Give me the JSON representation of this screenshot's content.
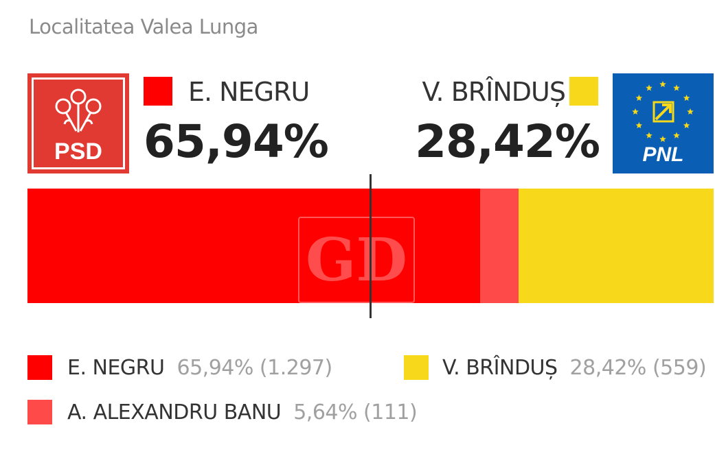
{
  "subtitle": "Localitatea Valea Lunga",
  "logos": {
    "left": {
      "party": "PSD",
      "color": "#e03a32"
    },
    "right": {
      "party": "PNL",
      "color": "#0a5fb4"
    }
  },
  "headers": {
    "left": {
      "name": "E. NEGRU",
      "percent": "65,94%",
      "color": "#ff0000"
    },
    "right": {
      "name": "V. BRÎNDUȘ",
      "percent": "28,42%",
      "color": "#f7d81b"
    }
  },
  "watermark": "GD",
  "chart_data": {
    "type": "bar",
    "orientation": "horizontal-stacked",
    "unit": "%",
    "series": [
      {
        "name": "E. NEGRU",
        "value": 65.94,
        "votes": 1297,
        "color": "#ff0000"
      },
      {
        "name": "A. ALEXANDRU BANU",
        "value": 5.64,
        "votes": 111,
        "color": "#ff4a4a"
      },
      {
        "name": "V. BRÎNDUȘ",
        "value": 28.42,
        "votes": 559,
        "color": "#f7d81b"
      }
    ],
    "majority_marker": 50
  },
  "legend": [
    {
      "name": "E. NEGRU",
      "value": "65,94% (1.297)",
      "color": "#ff0000"
    },
    {
      "name": "V. BRÎNDUȘ",
      "value": "28,42% (559)",
      "color": "#f7d81b"
    },
    {
      "name": "A. ALEXANDRU BANU",
      "value": "5,64% (111)",
      "color": "#ff4a4a"
    }
  ]
}
